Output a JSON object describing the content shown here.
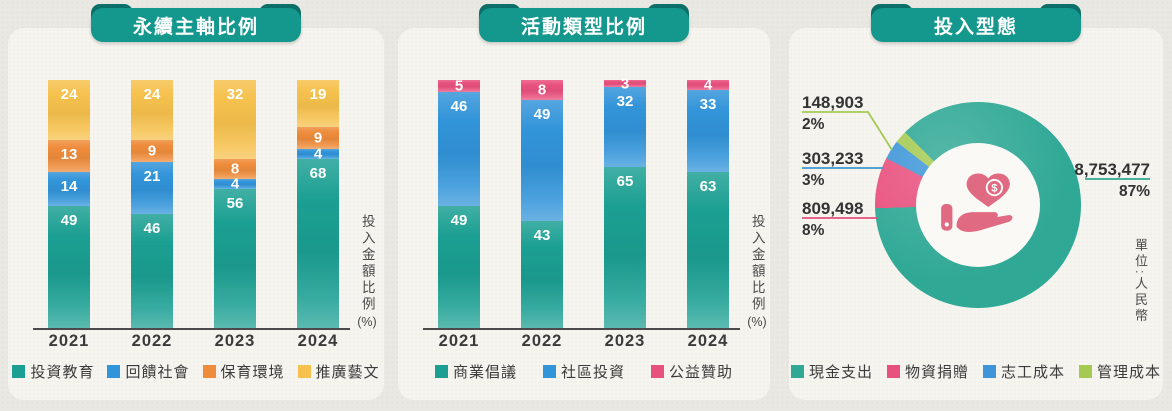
{
  "page": {
    "background": "#e9e8e2",
    "card_background": "#f5f4ef",
    "ribbon_color": "#14988e",
    "ribbon_dark_color": "#0c6f68",
    "axis_color": "#4a4a4a"
  },
  "chart_data": [
    {
      "type": "bar",
      "stacked": true,
      "title": "永續主軸比例",
      "ylabel": "投入金額比例(%)",
      "ylabel_main": "投入金額比例",
      "ylabel_unit": "(%)",
      "ylim": [
        0,
        100
      ],
      "categories": [
        "2021",
        "2022",
        "2023",
        "2024"
      ],
      "series": [
        {
          "name": "投資教育",
          "color": "#1b9f92",
          "values": [
            49,
            46,
            56,
            68
          ]
        },
        {
          "name": "回饋社會",
          "color": "#3294d9",
          "values": [
            14,
            21,
            4,
            4
          ]
        },
        {
          "name": "保育環境",
          "color": "#ee8c3b",
          "values": [
            13,
            9,
            8,
            9
          ]
        },
        {
          "name": "推廣藝文",
          "color": "#f6c14d",
          "values": [
            24,
            24,
            32,
            19
          ]
        }
      ],
      "legend_position": "bottom"
    },
    {
      "type": "bar",
      "stacked": true,
      "title": "活動類型比例",
      "ylabel": "投入金額比例(%)",
      "ylabel_main": "投入金額比例",
      "ylabel_unit": "(%)",
      "ylim": [
        0,
        100
      ],
      "categories": [
        "2021",
        "2022",
        "2023",
        "2024"
      ],
      "series": [
        {
          "name": "商業倡議",
          "color": "#1b9f92",
          "values": [
            49,
            43,
            65,
            63
          ]
        },
        {
          "name": "社區投資",
          "color": "#3294d9",
          "values": [
            46,
            49,
            32,
            33
          ]
        },
        {
          "name": "公益贊助",
          "color": "#e8517e",
          "values": [
            5,
            8,
            3,
            4
          ]
        }
      ],
      "legend_position": "bottom"
    },
    {
      "type": "pie",
      "donut": true,
      "title": "投入型態",
      "unit_note": "單位:人民幣",
      "center_icon": "hand-holding-heart-coin-icon",
      "slices": [
        {
          "label": "現金支出",
          "amount": "8,753,477",
          "percent": 87,
          "percent_label": "87%",
          "color": "#2fa895"
        },
        {
          "label": "物資捐贈",
          "amount": "809,498",
          "percent": 8,
          "percent_label": "8%",
          "color": "#e8517e"
        },
        {
          "label": "志工成本",
          "amount": "303,233",
          "percent": 3,
          "percent_label": "3%",
          "color": "#3e96d8"
        },
        {
          "label": "管理成本",
          "amount": "148,903",
          "percent": 2,
          "percent_label": "2%",
          "color": "#a5ca52"
        }
      ],
      "legend_position": "bottom"
    }
  ]
}
